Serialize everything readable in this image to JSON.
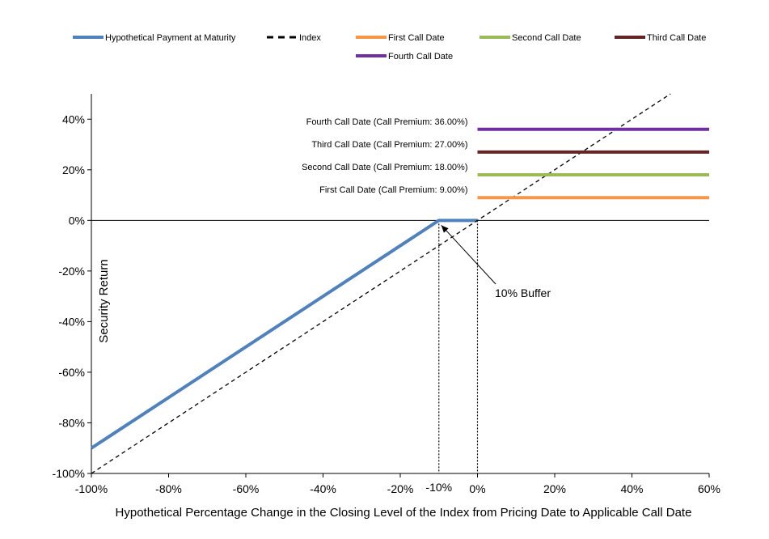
{
  "chart_data": {
    "type": "line",
    "xlabel": "Hypothetical Percentage Change in the Closing Level of the Index from Pricing Date to Applicable Call Date",
    "ylabel": "Security Return",
    "xlim": [
      -100,
      60
    ],
    "ylim": [
      -100,
      50
    ],
    "x_ticks": [
      -100,
      -80,
      -60,
      -40,
      -20,
      0,
      20,
      40,
      60
    ],
    "x_tick_labels": [
      "-100%",
      "-80%",
      "-60%",
      "-40%",
      "-20%",
      "0%",
      "20%",
      "40%",
      "60%"
    ],
    "extra_x_tick": {
      "value": -10,
      "label": "-10%"
    },
    "y_ticks": [
      -100,
      -80,
      -60,
      -40,
      -20,
      0,
      20,
      40
    ],
    "y_tick_labels": [
      "-100%",
      "-80%",
      "-60%",
      "-40%",
      "-20%",
      "0%",
      "20%",
      "40%"
    ],
    "legend_position": "top",
    "grid": false,
    "series": [
      {
        "name": "Hypothetical Payment at Maturity",
        "color": "#4f81bd",
        "style": "solid",
        "x": [
          -100,
          -10,
          0
        ],
        "y": [
          -90,
          0,
          0
        ]
      },
      {
        "name": "Index",
        "color": "#000000",
        "style": "dashed",
        "x": [
          -100,
          50
        ],
        "y": [
          -100,
          50
        ]
      },
      {
        "name": "First Call Date",
        "color": "#f79646",
        "style": "solid",
        "x": [
          0,
          60
        ],
        "y": [
          9,
          9
        ]
      },
      {
        "name": "Second Call Date",
        "color": "#9bbb59",
        "style": "solid",
        "x": [
          0,
          60
        ],
        "y": [
          18,
          18
        ]
      },
      {
        "name": "Third Call Date",
        "color": "#632523",
        "style": "solid",
        "x": [
          0,
          60
        ],
        "y": [
          27,
          27
        ]
      },
      {
        "name": "Fourth Call Date",
        "color": "#7030a0",
        "style": "solid",
        "x": [
          0,
          60
        ],
        "y": [
          36,
          36
        ]
      }
    ],
    "annotations": [
      {
        "text": "Fourth Call Date (Call Premium: 36.00%)",
        "x": 0,
        "y": 36
      },
      {
        "text": "Third Call Date (Call Premium: 27.00%)",
        "x": 0,
        "y": 27
      },
      {
        "text": "Second Call Date (Call Premium: 18.00%)",
        "x": 0,
        "y": 18
      },
      {
        "text": "First Call Date (Call Premium: 9.00%)",
        "x": 0,
        "y": 9
      }
    ],
    "buffer_annotation": {
      "text": "10% Buffer",
      "arrow_to": {
        "x": -10,
        "y": 0
      }
    },
    "vertical_reference_lines": [
      -10,
      0
    ]
  }
}
